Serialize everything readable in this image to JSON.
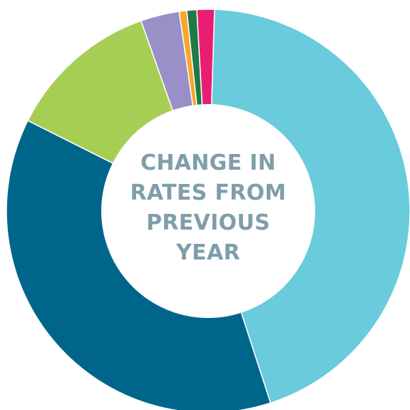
{
  "chart_data": {
    "type": "pie",
    "title": "",
    "center_label_lines": [
      "CHANGE IN",
      "RATES FROM",
      "PREVIOUS",
      "YEAR"
    ],
    "slices": [
      {
        "value": 44.5,
        "color": "#69cbdb"
      },
      {
        "value": 37.4,
        "color": "#00658a"
      },
      {
        "value": 12.2,
        "color": "#a6ce55"
      },
      {
        "value": 3.1,
        "color": "#9b8fc8"
      },
      {
        "value": 0.6,
        "color": "#f7a72b"
      },
      {
        "value": 0.8,
        "color": "#1e7b45"
      },
      {
        "value": 1.4,
        "color": "#ea1d74"
      }
    ],
    "legend": "none",
    "hole": "center"
  }
}
